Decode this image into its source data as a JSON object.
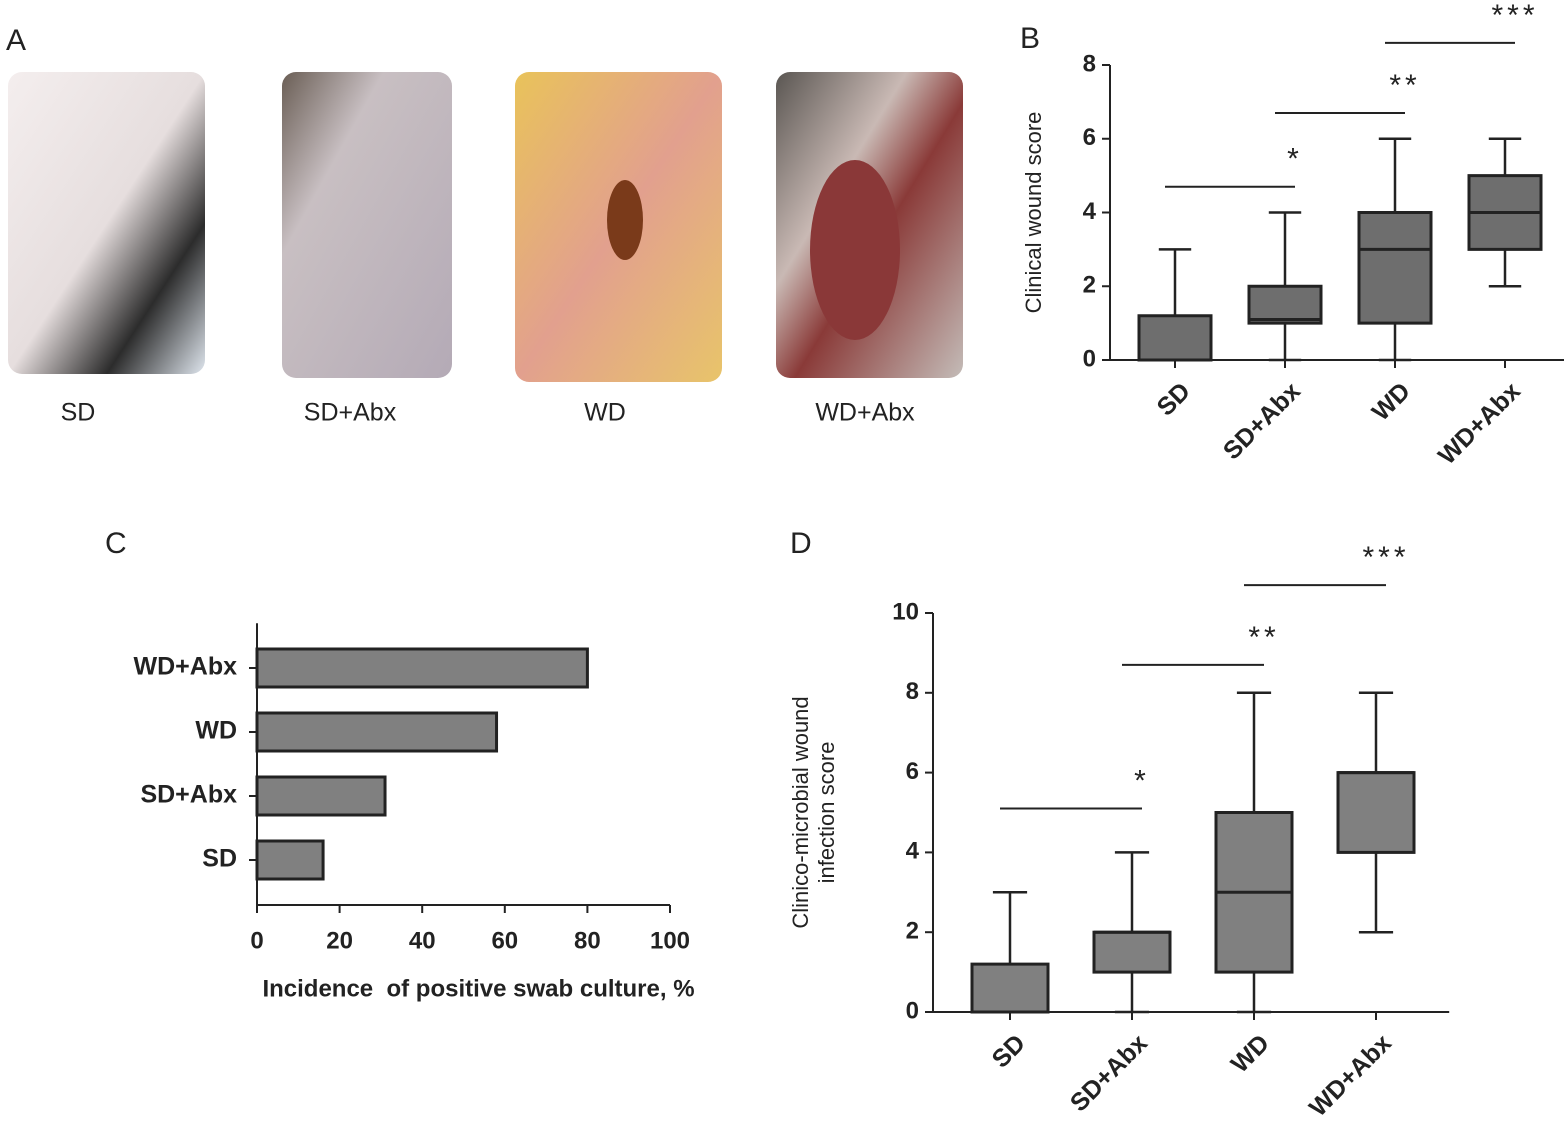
{
  "panel_a": {
    "label": "A",
    "photos": [
      "SD",
      "SD+Abx",
      "WD",
      "WD+Abx"
    ]
  },
  "chart_data": [
    {
      "type": "boxplot",
      "panel": "B",
      "ylabel": "Clinical wound score",
      "categories": [
        "SD",
        "SD+Abx",
        "WD",
        "WD+Abx"
      ],
      "stats": [
        {
          "whislo": 0,
          "q1": 0,
          "med": 0,
          "q3": 1.2,
          "whishi": 3
        },
        {
          "whislo": 0,
          "q1": 1,
          "med": 1.1,
          "q3": 2,
          "whishi": 4
        },
        {
          "whislo": 0,
          "q1": 1,
          "med": 3,
          "q3": 4,
          "whishi": 6
        },
        {
          "whislo": 2,
          "q1": 3,
          "med": 4,
          "q3": 5,
          "whishi": 6
        }
      ],
      "color": "#6e6e6e",
      "ylim": [
        0,
        8
      ],
      "yticks": [
        0,
        2,
        4,
        6,
        8
      ],
      "brackets": [
        {
          "label": "*",
          "from": 0,
          "to": 1,
          "y": 4.7
        },
        {
          "label": "**",
          "from": 1,
          "to": 2,
          "y": 6.7
        },
        {
          "label": "***",
          "from": 2,
          "to": 3,
          "y": 8.6
        }
      ]
    },
    {
      "type": "barh",
      "panel": "C",
      "xlabel": "Incidence  of positive swab culture, %",
      "categories": [
        "SD",
        "SD+Abx",
        "WD",
        "WD+Abx"
      ],
      "values": [
        16,
        31,
        58,
        80
      ],
      "color": "#808080",
      "xlim": [
        0,
        100
      ],
      "xticks": [
        0,
        20,
        40,
        60,
        80,
        100
      ]
    },
    {
      "type": "boxplot",
      "panel": "D",
      "ylabel": [
        "Clinico-microbial wound",
        "infection score"
      ],
      "categories": [
        "SD",
        "SD+Abx",
        "WD",
        "WD+Abx"
      ],
      "stats": [
        {
          "whislo": 0,
          "q1": 0,
          "med": 0,
          "q3": 1.2,
          "whishi": 3
        },
        {
          "whislo": 0,
          "q1": 1,
          "med": 2,
          "q3": 2,
          "whishi": 4
        },
        {
          "whislo": 0,
          "q1": 1,
          "med": 3,
          "q3": 5,
          "whishi": 8
        },
        {
          "whislo": 2,
          "q1": 4,
          "med": 6,
          "q3": 6,
          "whishi": 8
        }
      ],
      "color": "#808080",
      "ylim": [
        0,
        10
      ],
      "yticks": [
        0,
        2,
        4,
        6,
        8,
        10
      ],
      "brackets": [
        {
          "label": "*",
          "from": 0,
          "to": 1,
          "y": 5.1
        },
        {
          "label": "**",
          "from": 1,
          "to": 2,
          "y": 8.7
        },
        {
          "label": "***",
          "from": 2,
          "to": 3,
          "y": 10.7
        }
      ]
    }
  ]
}
